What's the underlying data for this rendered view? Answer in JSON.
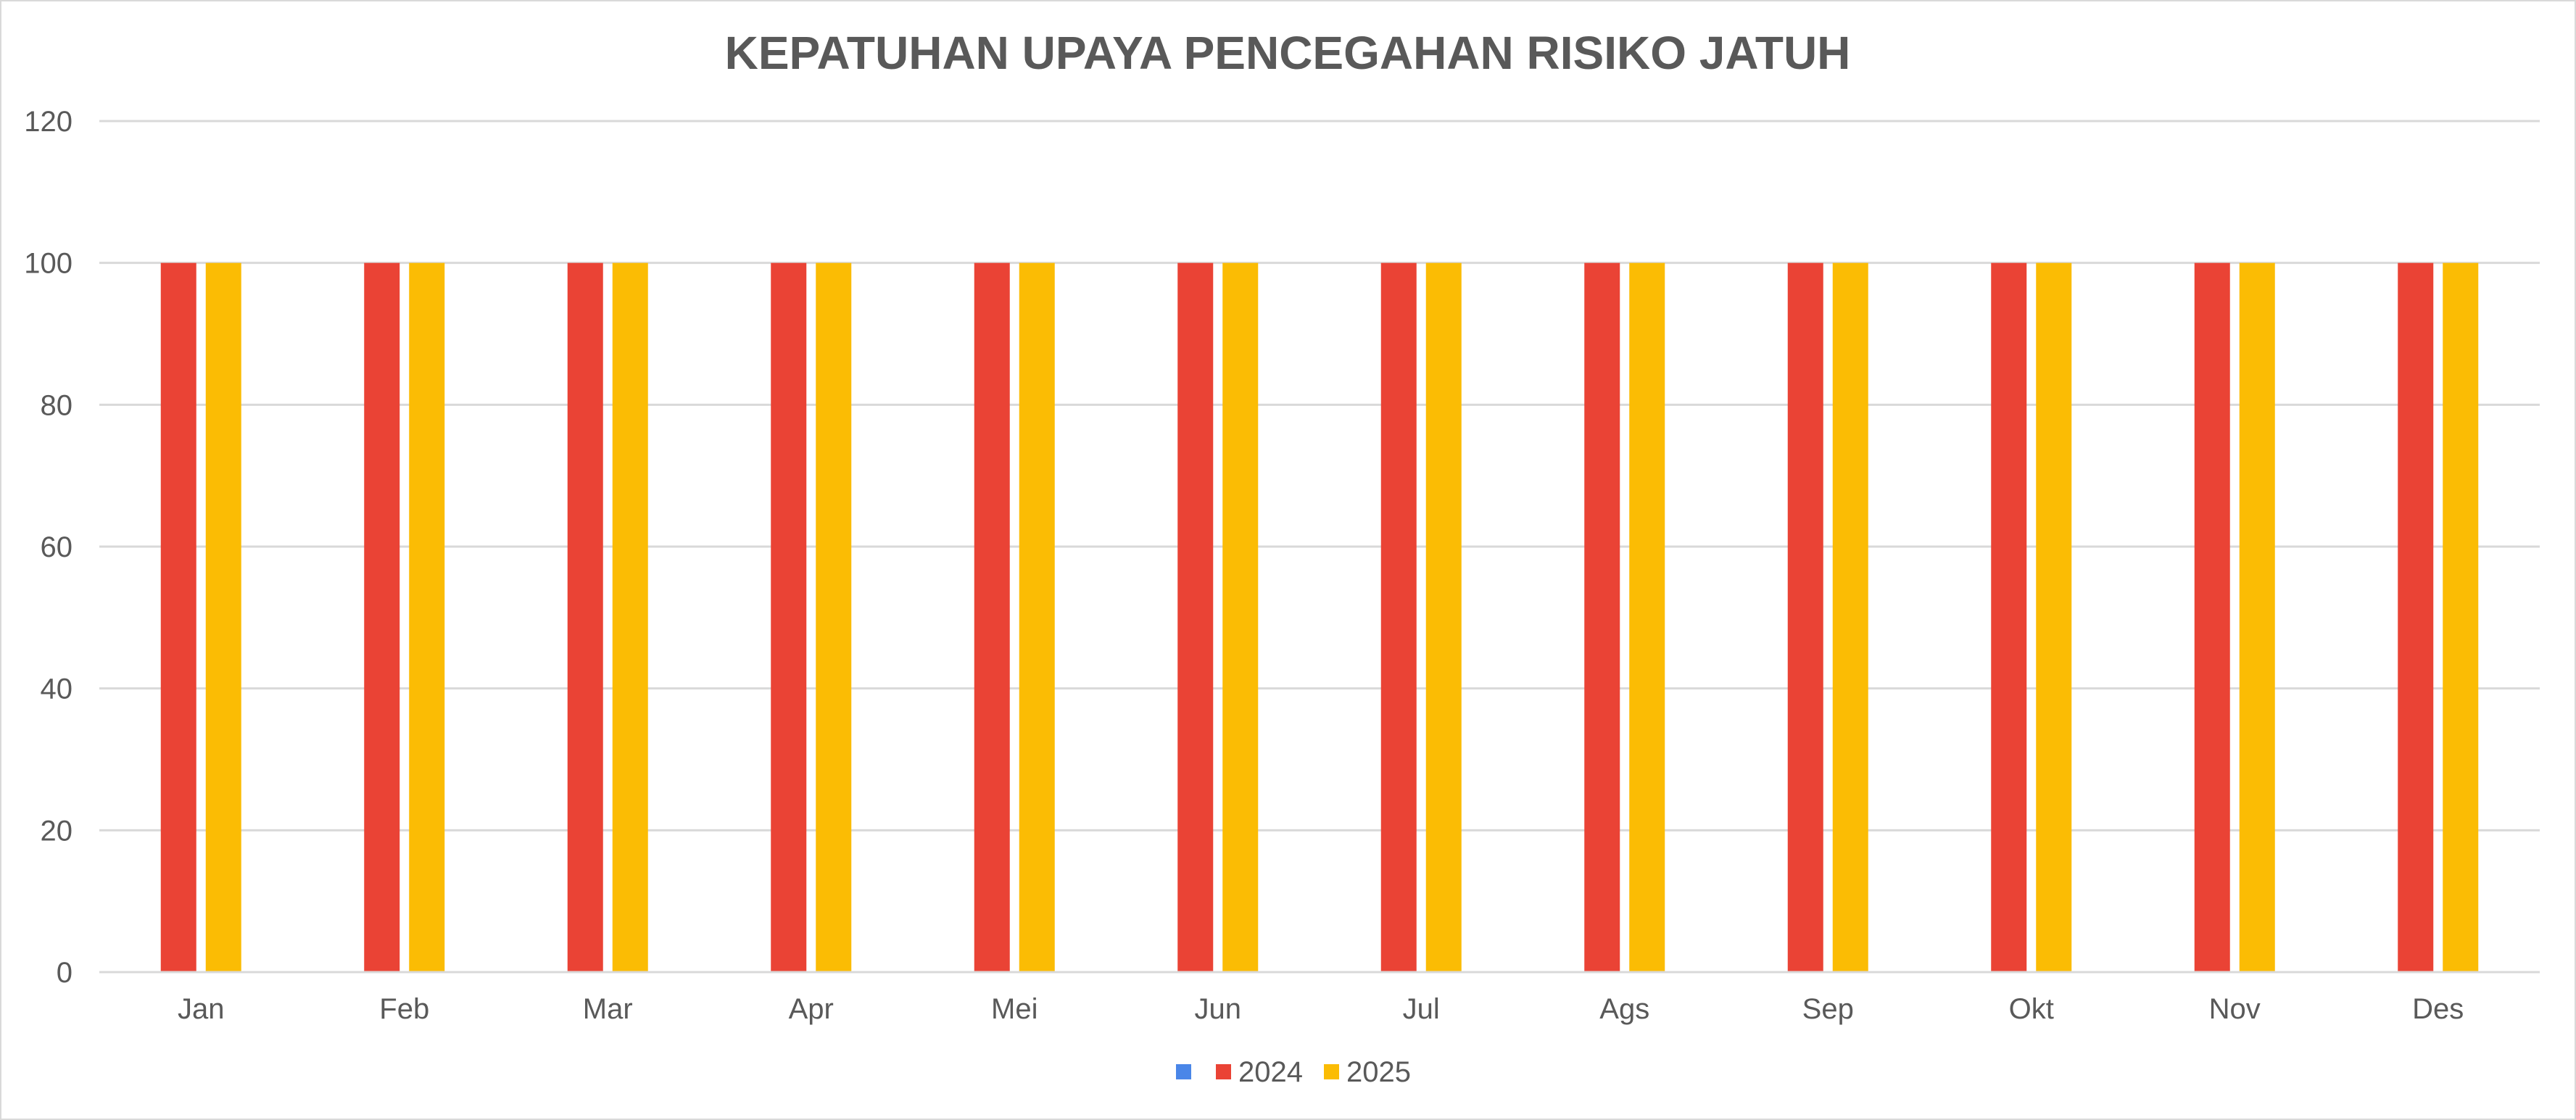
{
  "chart_data": {
    "type": "bar",
    "title": "KEPATUHAN UPAYA PENCEGAHAN RISIKO JATUH",
    "xlabel": "",
    "ylabel": "",
    "ylim": [
      0,
      120
    ],
    "yticks": [
      0,
      20,
      40,
      60,
      80,
      100,
      120
    ],
    "grid": true,
    "legend_position": "bottom",
    "categories": [
      "Jan",
      "Feb",
      "Mar",
      "Apr",
      "Mei",
      "Jun",
      "Jul",
      "Ags",
      "Sep",
      "Okt",
      "Nov",
      "Des"
    ],
    "series": [
      {
        "name": "",
        "color": "#4a86e8",
        "values": [
          null,
          null,
          null,
          null,
          null,
          null,
          null,
          null,
          null,
          null,
          null,
          null
        ]
      },
      {
        "name": "2024",
        "color": "#ea4335",
        "values": [
          100,
          100,
          100,
          100,
          100,
          100,
          100,
          100,
          100,
          100,
          100,
          100
        ]
      },
      {
        "name": "2025",
        "color": "#fbbc04",
        "values": [
          100,
          100,
          100,
          100,
          100,
          100,
          100,
          100,
          100,
          100,
          100,
          100
        ]
      }
    ]
  }
}
